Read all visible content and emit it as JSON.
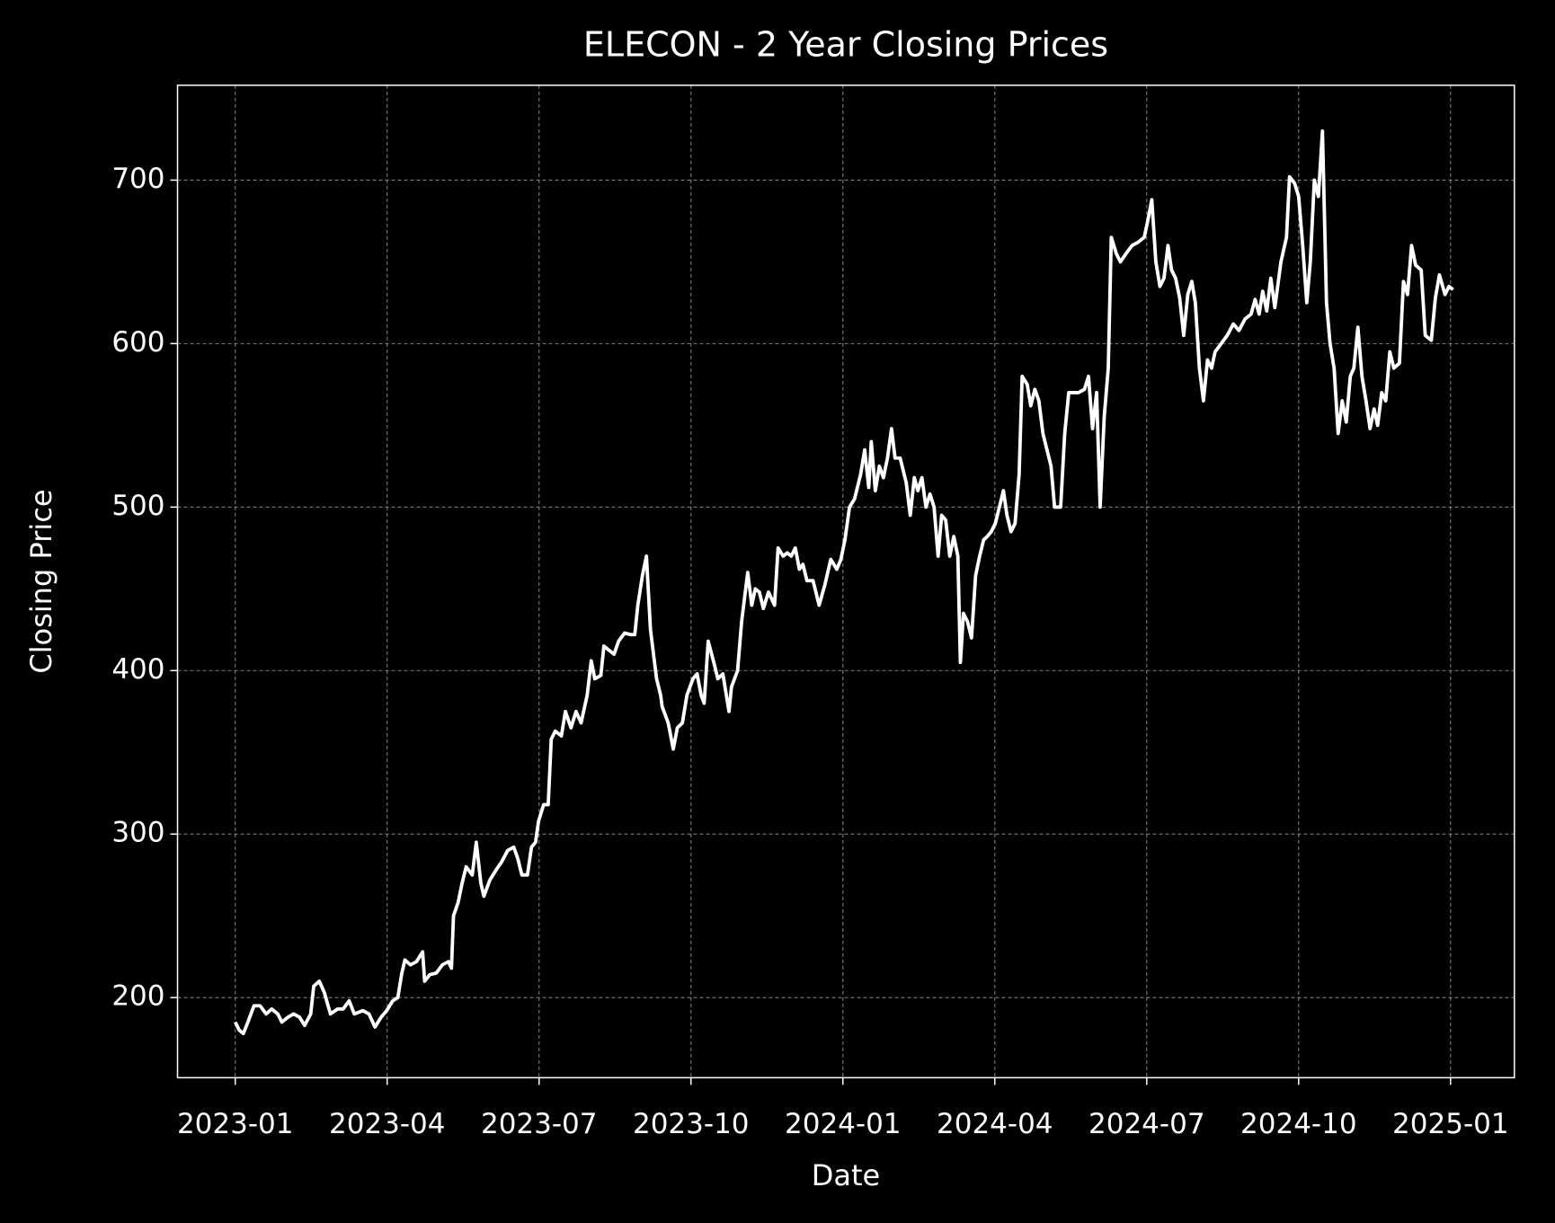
{
  "chart_data": {
    "type": "line",
    "title": "ELECON - 2 Year Closing Prices",
    "x_label": "Date",
    "y_label": "Closing Price",
    "color": "#ffffff",
    "grid": true,
    "xlim": [
      -1.14,
      25.26
    ],
    "xticks": [
      {
        "value": 0,
        "label": "2023-01"
      },
      {
        "value": 3,
        "label": "2023-04"
      },
      {
        "value": 6,
        "label": "2023-07"
      },
      {
        "value": 9,
        "label": "2023-10"
      },
      {
        "value": 12,
        "label": "2024-01"
      },
      {
        "value": 15,
        "label": "2024-04"
      },
      {
        "value": 18,
        "label": "2024-07"
      },
      {
        "value": 21,
        "label": "2024-10"
      },
      {
        "value": 24,
        "label": "2025-01"
      }
    ],
    "ylim": [
      151,
      758
    ],
    "yticks": [
      200,
      300,
      400,
      500,
      600,
      700
    ],
    "x": [
      0,
      0.08,
      0.16,
      0.25,
      0.37,
      0.49,
      0.61,
      0.72,
      0.84,
      0.92,
      1.04,
      1.15,
      1.27,
      1.37,
      1.49,
      1.55,
      1.66,
      1.76,
      1.88,
      2.02,
      2.13,
      2.25,
      2.35,
      2.52,
      2.64,
      2.76,
      2.88,
      2.99,
      3.11,
      3.21,
      3.29,
      3.35,
      3.46,
      3.58,
      3.7,
      3.74,
      3.84,
      3.97,
      4.09,
      4.21,
      4.27,
      4.31,
      4.4,
      4.48,
      4.56,
      4.68,
      4.76,
      4.85,
      4.91,
      5.03,
      5.15,
      5.26,
      5.38,
      5.5,
      5.58,
      5.66,
      5.77,
      5.85,
      5.93,
      5.99,
      6.09,
      6.18,
      6.24,
      6.32,
      6.44,
      6.52,
      6.63,
      6.73,
      6.83,
      6.95,
      7.03,
      7.1,
      7.22,
      7.28,
      7.4,
      7.48,
      7.57,
      7.69,
      7.81,
      7.89,
      7.95,
      8.04,
      8.12,
      8.2,
      8.32,
      8.4,
      8.43,
      8.55,
      8.65,
      8.73,
      8.83,
      8.92,
      9.04,
      9.12,
      9.2,
      9.26,
      9.34,
      9.45,
      9.53,
      9.63,
      9.75,
      9.8,
      9.92,
      10.0,
      10.12,
      10.2,
      10.27,
      10.35,
      10.43,
      10.53,
      10.65,
      10.72,
      10.82,
      10.9,
      10.98,
      11.06,
      11.14,
      11.21,
      11.29,
      11.41,
      11.53,
      11.64,
      11.76,
      11.88,
      11.96,
      12.04,
      12.13,
      12.23,
      12.35,
      12.43,
      12.51,
      12.56,
      12.64,
      12.72,
      12.8,
      12.88,
      12.96,
      13.03,
      13.13,
      13.25,
      13.33,
      13.41,
      13.48,
      13.56,
      13.64,
      13.72,
      13.8,
      13.88,
      13.95,
      14.03,
      14.11,
      14.19,
      14.27,
      14.32,
      14.38,
      14.46,
      14.54,
      14.62,
      14.7,
      14.78,
      14.85,
      14.93,
      15.01,
      15.09,
      15.17,
      15.24,
      15.32,
      15.4,
      15.48,
      15.54,
      15.64,
      15.71,
      15.79,
      15.87,
      15.95,
      16.03,
      16.11,
      16.18,
      16.3,
      16.38,
      16.46,
      16.54,
      16.65,
      16.77,
      16.85,
      16.93,
      17.01,
      17.08,
      17.16,
      17.24,
      17.3,
      17.4,
      17.48,
      17.59,
      17.71,
      17.83,
      17.95,
      18.02,
      18.1,
      18.18,
      18.26,
      18.34,
      18.42,
      18.49,
      18.57,
      18.65,
      18.73,
      18.81,
      18.89,
      18.96,
      19.04,
      19.12,
      19.2,
      19.28,
      19.35,
      19.47,
      19.59,
      19.71,
      19.82,
      19.94,
      20.06,
      20.14,
      20.22,
      20.29,
      20.37,
      20.45,
      20.53,
      20.65,
      20.76,
      20.82,
      20.92,
      21.0,
      21.08,
      21.16,
      21.23,
      21.31,
      21.39,
      21.47,
      21.55,
      21.62,
      21.7,
      21.78,
      21.86,
      21.94,
      22.02,
      22.09,
      22.17,
      22.25,
      22.33,
      22.41,
      22.49,
      22.56,
      22.64,
      22.72,
      22.8,
      22.88,
      22.99,
      23.07,
      23.15,
      23.23,
      23.31,
      23.42,
      23.5,
      23.62,
      23.7,
      23.78,
      23.89,
      23.97,
      24.05
    ],
    "values": [
      185,
      180,
      178,
      185,
      195,
      195,
      190,
      193,
      190,
      185,
      188,
      190,
      188,
      183,
      190,
      207,
      210,
      203,
      190,
      193,
      193,
      198,
      190,
      192,
      190,
      182,
      188,
      192,
      198,
      200,
      215,
      223,
      220,
      222,
      228,
      210,
      214,
      215,
      220,
      222,
      218,
      250,
      258,
      270,
      280,
      275,
      295,
      270,
      262,
      272,
      278,
      283,
      290,
      292,
      285,
      275,
      275,
      292,
      295,
      308,
      318,
      318,
      358,
      363,
      360,
      375,
      365,
      375,
      368,
      385,
      406,
      395,
      397,
      415,
      412,
      410,
      418,
      423,
      422,
      422,
      440,
      458,
      470,
      425,
      395,
      385,
      378,
      368,
      352,
      365,
      368,
      385,
      395,
      398,
      385,
      380,
      418,
      405,
      395,
      398,
      375,
      390,
      400,
      430,
      460,
      440,
      450,
      448,
      438,
      448,
      440,
      475,
      470,
      472,
      470,
      475,
      462,
      465,
      455,
      455,
      440,
      452,
      468,
      462,
      468,
      480,
      500,
      505,
      520,
      535,
      512,
      540,
      510,
      525,
      518,
      530,
      548,
      530,
      530,
      515,
      495,
      518,
      510,
      518,
      500,
      508,
      500,
      470,
      495,
      492,
      470,
      482,
      470,
      405,
      435,
      430,
      420,
      458,
      470,
      480,
      482,
      485,
      490,
      500,
      510,
      495,
      485,
      490,
      520,
      580,
      575,
      562,
      572,
      565,
      545,
      535,
      525,
      500,
      500,
      545,
      570,
      570,
      570,
      572,
      580,
      548,
      570,
      500,
      555,
      585,
      665,
      655,
      650,
      655,
      660,
      662,
      665,
      675,
      688,
      650,
      635,
      640,
      660,
      645,
      640,
      628,
      605,
      630,
      638,
      625,
      585,
      565,
      590,
      585,
      595,
      600,
      605,
      612,
      608,
      615,
      618,
      627,
      618,
      632,
      620,
      640,
      622,
      650,
      665,
      702,
      698,
      690,
      660,
      625,
      650,
      700,
      690,
      730,
      625,
      600,
      585,
      545,
      565,
      552,
      580,
      585,
      610,
      580,
      565,
      548,
      560,
      550,
      570,
      565,
      595,
      585,
      588,
      638,
      630,
      660,
      648,
      645,
      605,
      602,
      628,
      642,
      630,
      635,
      633
    ]
  }
}
